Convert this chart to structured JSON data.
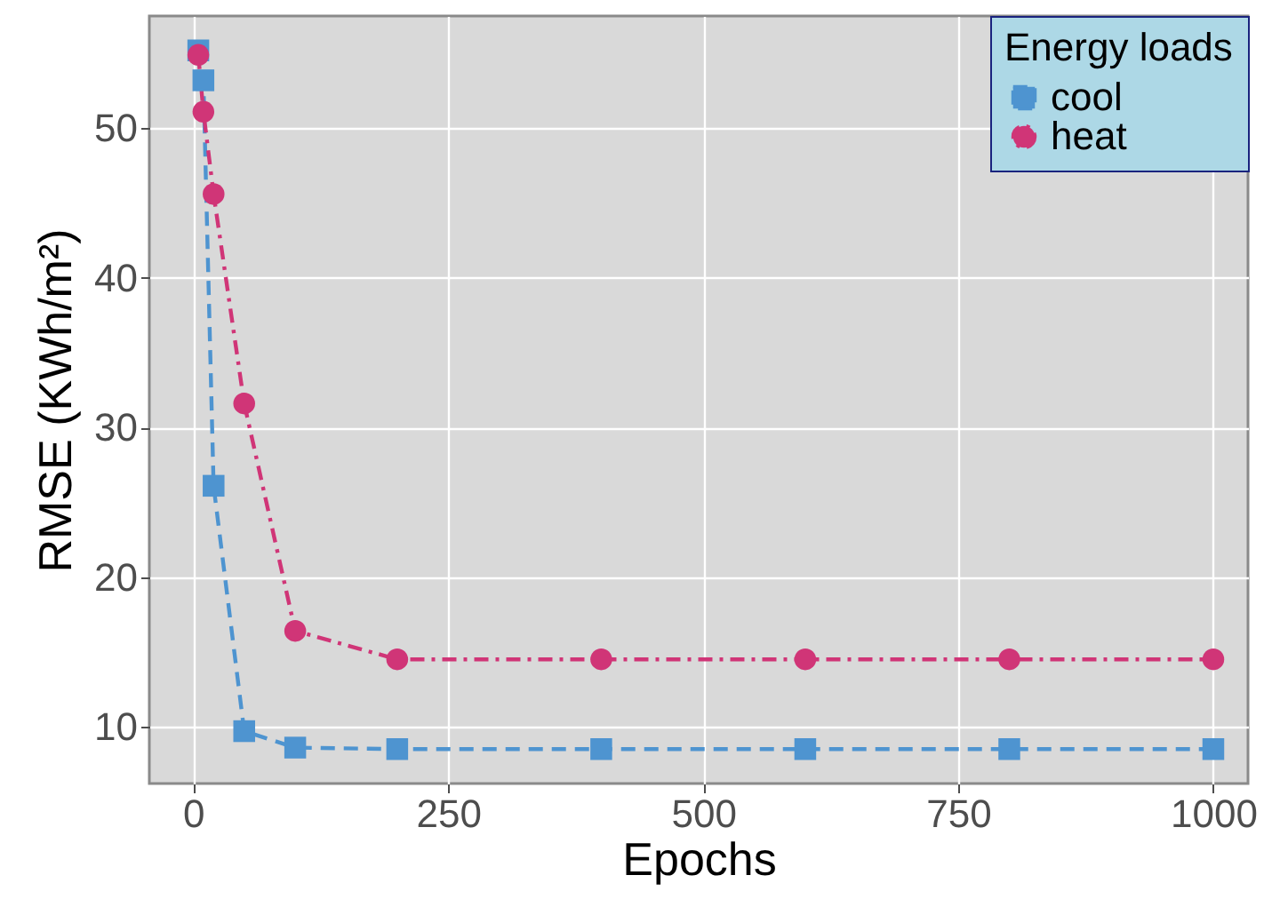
{
  "chart_data": {
    "type": "line",
    "xlabel": "Epochs",
    "ylabel": "RMSE (KWh/m²)",
    "legend_title": "Energy loads",
    "legend": "top right",
    "grid": true,
    "xlim": [
      -43,
      1034
    ],
    "xticks": [
      0,
      250,
      500,
      750,
      1000
    ],
    "ylim": [
      6.2,
      57.5
    ],
    "yticks": [
      10,
      20,
      30,
      40,
      50
    ],
    "series": [
      {
        "name": "cool",
        "color": "#4e94d0",
        "marker": "square",
        "line_style": "dashed",
        "x": [
          5,
          10,
          20,
          50,
          100,
          200,
          400,
          600,
          800,
          1000
        ],
        "values": [
          55.2,
          53.2,
          26.1,
          9.7,
          8.6,
          8.5,
          8.5,
          8.5,
          8.5,
          8.5
        ]
      },
      {
        "name": "heat",
        "color": "#d03577",
        "marker": "circle",
        "line_style": "dashdot",
        "x": [
          5,
          10,
          20,
          50,
          100,
          200,
          400,
          600,
          800,
          1000
        ],
        "values": [
          54.9,
          51.1,
          45.6,
          31.6,
          16.4,
          14.5,
          14.5,
          14.5,
          14.5,
          14.5
        ]
      }
    ]
  }
}
